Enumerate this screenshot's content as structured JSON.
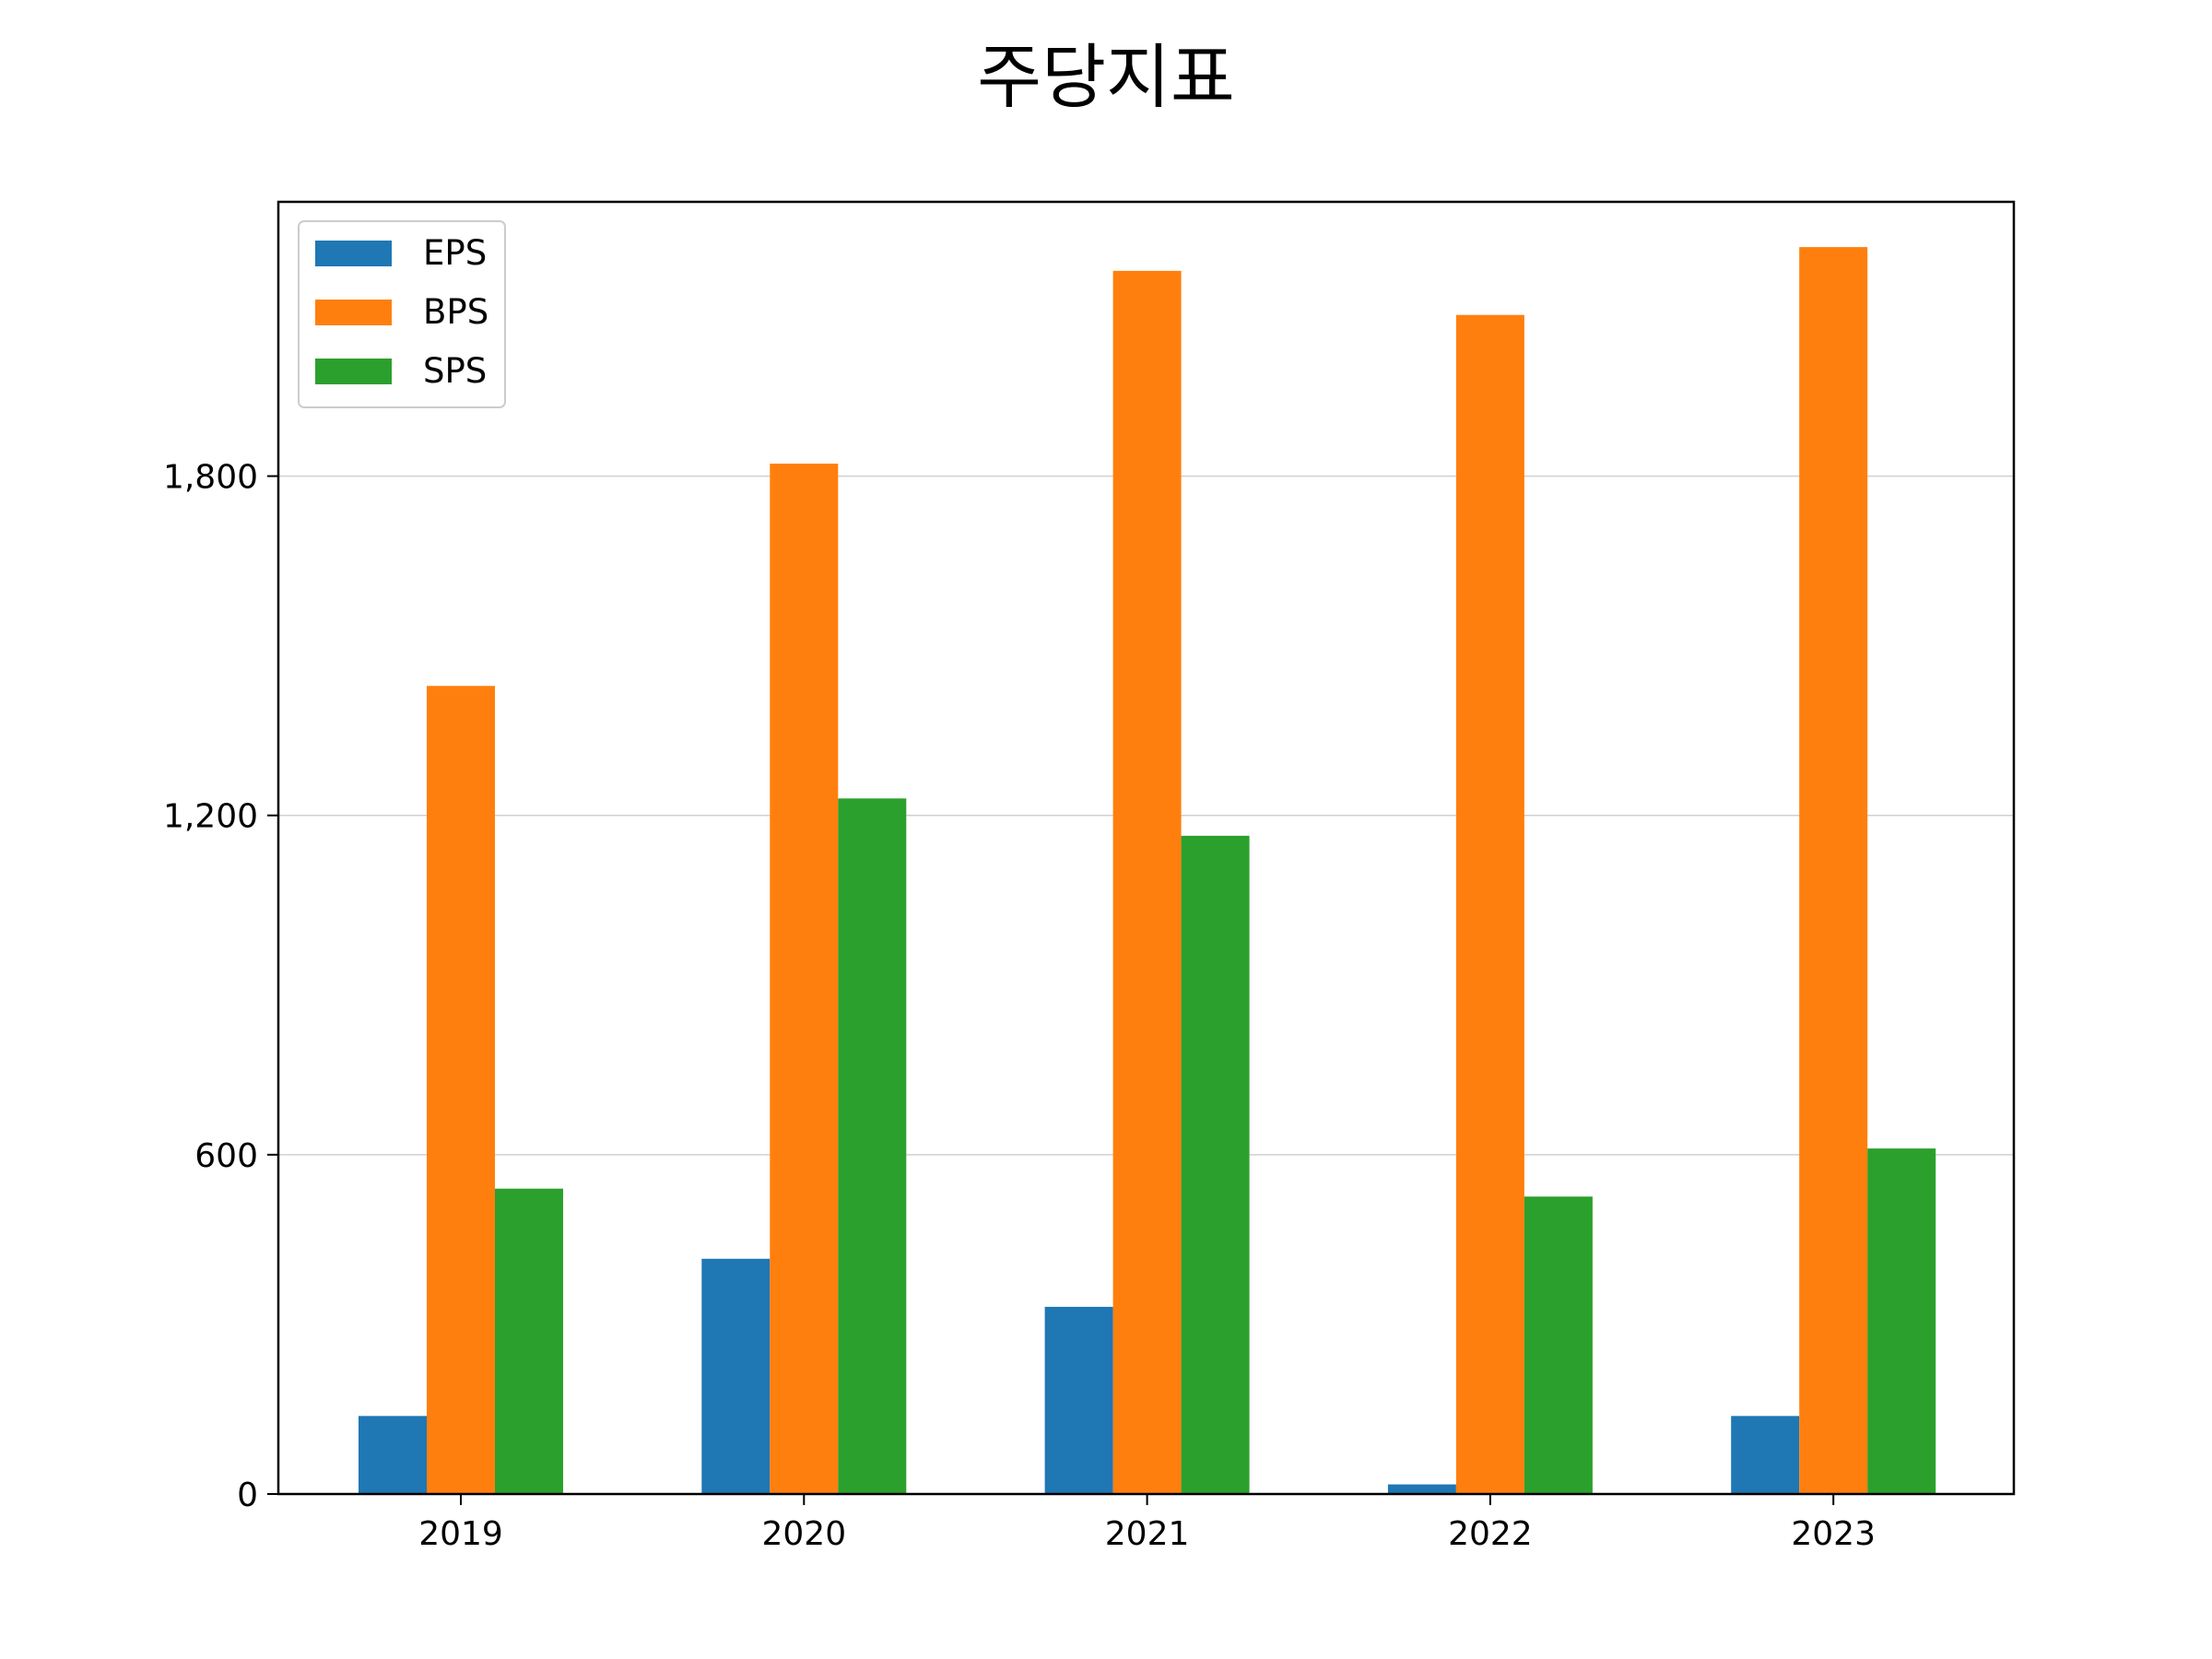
{
  "chart_data": {
    "type": "bar",
    "title": "주당지표",
    "xlabel": "",
    "ylabel": "",
    "categories": [
      "2019",
      "2020",
      "2021",
      "2022",
      "2023"
    ],
    "series": [
      {
        "name": "EPS",
        "color": "#1f77b4",
        "values": [
          138,
          416,
          331,
          17,
          138
        ]
      },
      {
        "name": "BPS",
        "color": "#ff7f0e",
        "values": [
          1429,
          1822,
          2163,
          2085,
          2205
        ]
      },
      {
        "name": "SPS",
        "color": "#2ca02c",
        "values": [
          540,
          1230,
          1164,
          526,
          611
        ]
      }
    ],
    "ylim": [
      0,
      2285
    ],
    "yticks": [
      0,
      600,
      1200,
      1800
    ],
    "ytick_labels": [
      "0",
      "600",
      "1,200",
      "1,800"
    ],
    "grid": {
      "y": true,
      "x": false
    },
    "legend_position": "top-left"
  }
}
